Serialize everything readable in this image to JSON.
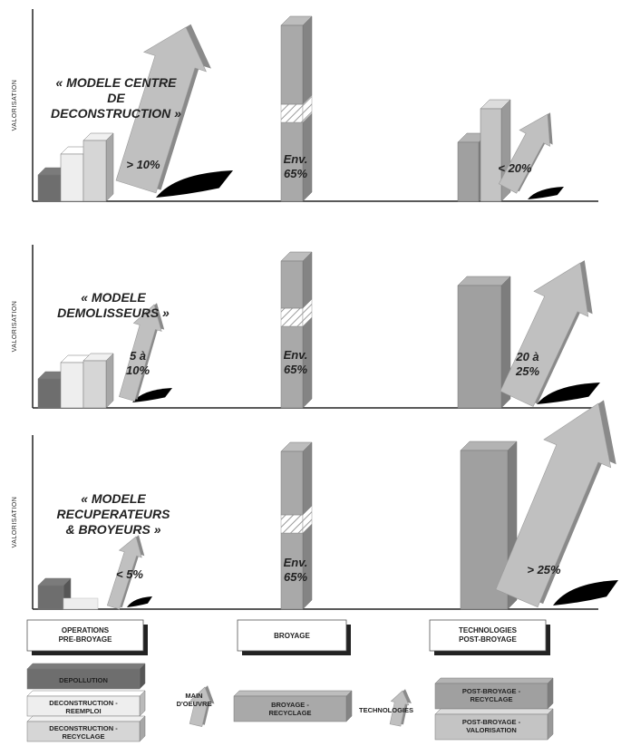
{
  "panels": [
    {
      "axis_label": "VALORISATION",
      "model_title": [
        "« MODELE CENTRE",
        "DE",
        "DECONSTRUCTION »"
      ],
      "left_pct": [
        "> 10%"
      ],
      "center_pct": [
        "Env.",
        "65%"
      ],
      "right_pct": [
        "< 20%"
      ]
    },
    {
      "axis_label": "VALORISATION",
      "model_title": [
        "« MODELE",
        "DEMOLISSEURS »"
      ],
      "left_pct": [
        "5 à",
        "10%"
      ],
      "center_pct": [
        "Env.",
        "65%"
      ],
      "right_pct": [
        "20 à",
        "25%"
      ]
    },
    {
      "axis_label": "VALORISATION",
      "model_title": [
        "« MODELE",
        "RECUPERATEURS",
        "& BROYEURS »"
      ],
      "left_pct": [
        "< 5%"
      ],
      "center_pct": [
        "Env.",
        "65%"
      ],
      "right_pct": [
        "> 25%"
      ]
    }
  ],
  "phase_boxes": [
    [
      "OPERATIONS",
      "PRE-BROYAGE"
    ],
    [
      "BROYAGE"
    ],
    [
      "TECHNOLOGIES",
      "POST-BROYAGE"
    ]
  ],
  "legend": {
    "left_items": [
      [
        "DEPOLLUTION"
      ],
      [
        "DECONSTRUCTION -",
        "REEMPLOI"
      ],
      [
        "DECONSTRUCTION -",
        "RECYCLAGE"
      ]
    ],
    "labour": [
      "MAIN",
      "D'OEUVRE"
    ],
    "center_item": [
      "BROYAGE -",
      "RECYCLAGE"
    ],
    "tech": [
      "TECHNOLOGIES"
    ],
    "right_items": [
      [
        "POST-BROYAGE -",
        "RECYCLAGE"
      ],
      [
        "POST-BROYAGE -",
        "VALORISATION"
      ]
    ]
  },
  "colors": {
    "depollution": "#6e6e6e",
    "reemploi": "#eeeeee",
    "recyclage": "#d6d6d6",
    "broyage": "#a9a9a9",
    "post_recyclage": "#a0a0a0",
    "post_valorisation": "#c4c4c4",
    "arrow": "#c0c0c0",
    "shadow": "#000000",
    "axis": "#222222"
  }
}
